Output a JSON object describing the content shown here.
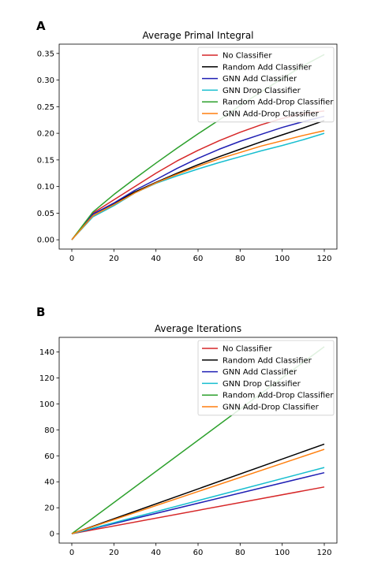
{
  "chart_data": [
    {
      "type": "line",
      "panel": "A",
      "title": "Average Primal Integral",
      "xlabel": "",
      "ylabel": "",
      "xlim": [
        -6,
        126
      ],
      "ylim": [
        -0.0175,
        0.3675
      ],
      "xticks": [
        0,
        20,
        40,
        60,
        80,
        100,
        120
      ],
      "yticks": [
        0.0,
        0.05,
        0.1,
        0.15,
        0.2,
        0.25,
        0.3,
        0.35
      ],
      "ytick_labels": [
        "0.00",
        "0.05",
        "0.10",
        "0.15",
        "0.20",
        "0.25",
        "0.30",
        "0.35"
      ],
      "grid": false,
      "legend_position": "top-right",
      "x": [
        0,
        10,
        20,
        30,
        40,
        50,
        60,
        70,
        80,
        90,
        100,
        110,
        120
      ],
      "series": [
        {
          "name": "No Classifier",
          "color": "#d62728",
          "values": [
            0.0,
            0.05,
            0.075,
            0.1,
            0.125,
            0.148,
            0.168,
            0.186,
            0.202,
            0.216,
            0.228,
            0.237,
            0.242
          ]
        },
        {
          "name": "Random Add Classifier",
          "color": "#000000",
          "values": [
            0.0,
            0.048,
            0.068,
            0.09,
            0.108,
            0.125,
            0.141,
            0.156,
            0.17,
            0.184,
            0.197,
            0.21,
            0.224
          ]
        },
        {
          "name": "GNN Add Classifier",
          "color": "#1f1fb4",
          "values": [
            0.0,
            0.048,
            0.069,
            0.093,
            0.113,
            0.134,
            0.153,
            0.17,
            0.185,
            0.198,
            0.211,
            0.222,
            0.232
          ]
        },
        {
          "name": "GNN Drop Classifier",
          "color": "#17becf",
          "values": [
            0.0,
            0.043,
            0.064,
            0.088,
            0.106,
            0.12,
            0.133,
            0.145,
            0.156,
            0.167,
            0.177,
            0.188,
            0.2
          ]
        },
        {
          "name": "Random Add-Drop Classifier",
          "color": "#2ca02c",
          "values": [
            0.0,
            0.052,
            0.085,
            0.115,
            0.144,
            0.172,
            0.199,
            0.225,
            0.252,
            0.278,
            0.303,
            0.327,
            0.348
          ]
        },
        {
          "name": "GNN Add-Drop Classifier",
          "color": "#ff7f0e",
          "values": [
            0.0,
            0.045,
            0.066,
            0.088,
            0.107,
            0.123,
            0.138,
            0.152,
            0.164,
            0.176,
            0.186,
            0.196,
            0.205
          ]
        }
      ]
    },
    {
      "type": "line",
      "panel": "B",
      "title": "Average Iterations",
      "xlabel": "",
      "ylabel": "",
      "xlim": [
        -6,
        126
      ],
      "ylim": [
        -7.2,
        151.2
      ],
      "xticks": [
        0,
        20,
        40,
        60,
        80,
        100,
        120
      ],
      "yticks": [
        0,
        20,
        40,
        60,
        80,
        100,
        120,
        140
      ],
      "ytick_labels": [
        "0",
        "20",
        "40",
        "60",
        "80",
        "100",
        "120",
        "140"
      ],
      "grid": false,
      "legend_position": "top-right",
      "x": [
        0,
        120
      ],
      "series": [
        {
          "name": "No Classifier",
          "color": "#d62728",
          "values": [
            0,
            36
          ]
        },
        {
          "name": "Random Add Classifier",
          "color": "#000000",
          "values": [
            0,
            69
          ]
        },
        {
          "name": "GNN Add Classifier",
          "color": "#1f1fb4",
          "values": [
            0,
            47
          ]
        },
        {
          "name": "GNN Drop Classifier",
          "color": "#17becf",
          "values": [
            0,
            51
          ]
        },
        {
          "name": "Random Add-Drop Classifier",
          "color": "#2ca02c",
          "values": [
            0,
            144
          ]
        },
        {
          "name": "GNN Add-Drop Classifier",
          "color": "#ff7f0e",
          "values": [
            0,
            65
          ]
        }
      ]
    }
  ]
}
